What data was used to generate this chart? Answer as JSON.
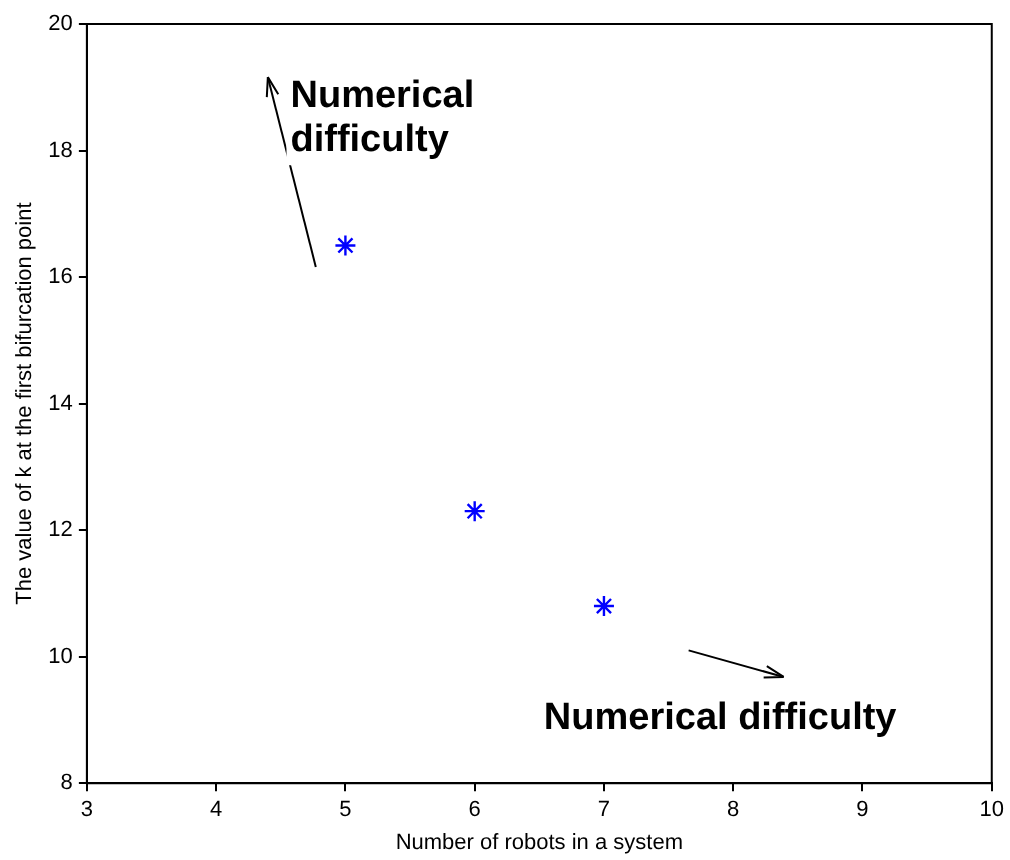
{
  "chart_data": {
    "type": "scatter",
    "xlabel": "Number of robots in a system",
    "ylabel": "The value of k at the first bifurcation point",
    "x": [
      5,
      6,
      7
    ],
    "series": [
      {
        "color": "#0000ff",
        "values": [
          16.5,
          12.3,
          10.8
        ]
      }
    ],
    "xlim": [
      3,
      10
    ],
    "xticks": [
      3,
      4,
      5,
      6,
      7,
      8,
      9,
      10
    ],
    "ylim": [
      8,
      20
    ],
    "yticks": [
      8,
      10,
      12,
      14,
      16,
      18,
      20
    ],
    "marker": "cross",
    "grid": false,
    "legend": false,
    "annotations": [
      "Numerical difficulty",
      "Numerical difficulty"
    ]
  }
}
